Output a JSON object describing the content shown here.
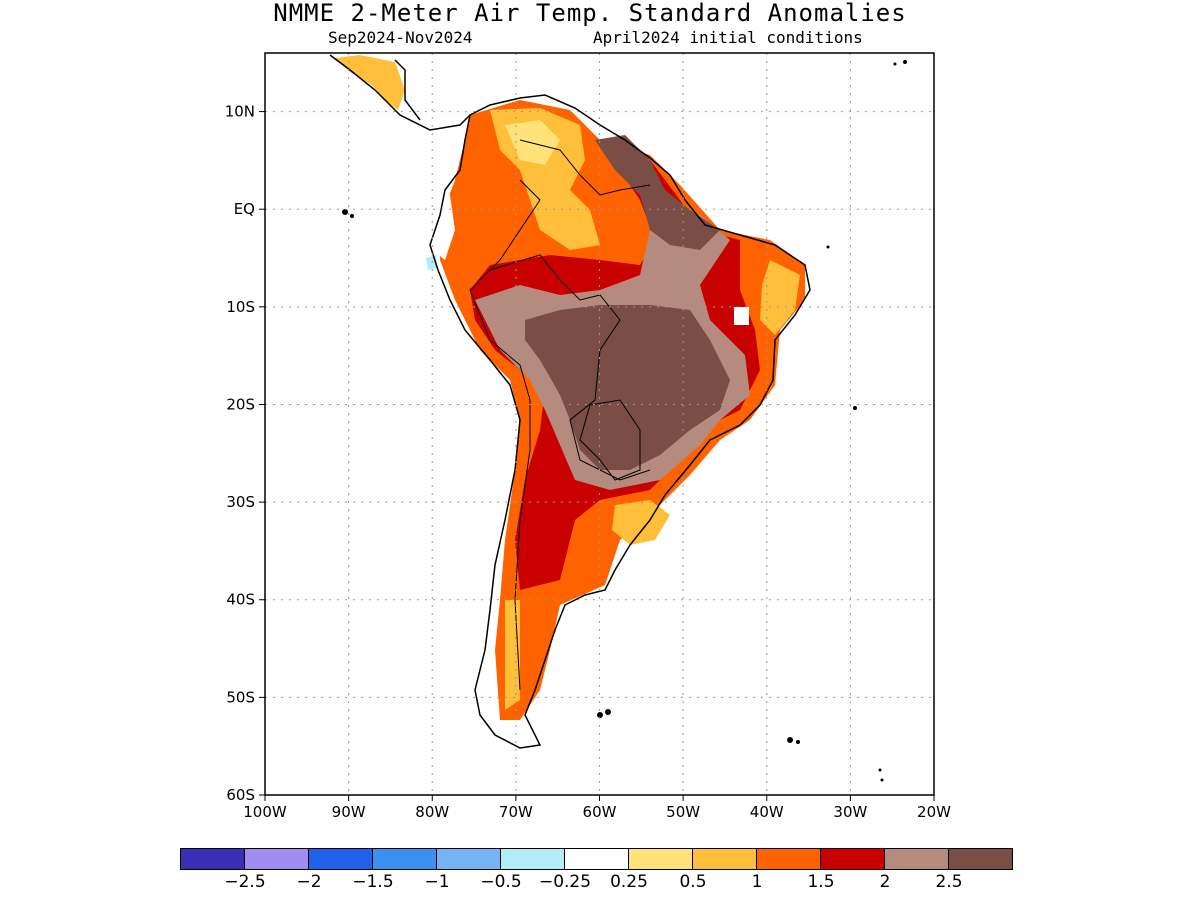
{
  "header": {
    "title": "NMME 2-Meter Air Temp. Standard Anomalies",
    "period": "Sep2024-Nov2024",
    "init": "April2024 initial conditions"
  },
  "map": {
    "lat_labels": [
      "10N",
      "EQ",
      "10S",
      "20S",
      "30S",
      "40S",
      "50S",
      "60S"
    ],
    "lon_labels": [
      "100W",
      "90W",
      "80W",
      "70W",
      "60W",
      "50W",
      "40W",
      "30W",
      "20W"
    ],
    "lat_values": [
      10,
      0,
      -10,
      -20,
      -30,
      -40,
      -50,
      -60
    ],
    "lon_values": [
      -100,
      -90,
      -80,
      -70,
      -60,
      -50,
      -40,
      -30,
      -20
    ],
    "extent": {
      "lon_min": -100,
      "lon_max": -20,
      "lat_min": -60,
      "lat_max": 16
    }
  },
  "colorbar": {
    "colors": [
      "#3a2fb4",
      "#9f8df2",
      "#1f61e8",
      "#3b90f0",
      "#74b4f4",
      "#b2ecf7",
      "#ffffff",
      "#ffe27a",
      "#ffbf3a",
      "#ff6300",
      "#c80000",
      "#b58b80",
      "#7a4e44"
    ],
    "labels": [
      "-2.5",
      "-2",
      "-1.5",
      "-1",
      "-0.5",
      "-0.25",
      "0.25",
      "0.5",
      "1",
      "1.5",
      "2",
      "2.5"
    ]
  },
  "chart_data": {
    "type": "heatmap",
    "title": "NMME 2-Meter Air Temp. Standard Anomalies",
    "subtitle": "Sep2024-Nov2024   April2024 initial conditions",
    "xlim": [
      -100,
      -20
    ],
    "ylim": [
      -60,
      16
    ],
    "legend": "bottom",
    "levels": [
      -2.5,
      -2,
      -1.5,
      -1,
      -0.5,
      -0.25,
      0.25,
      0.5,
      1,
      1.5,
      2,
      2.5
    ],
    "regions": [
      {
        "region": "Central Brazil / Mato Grosso",
        "anomaly_min": 2.5
      },
      {
        "region": "Amazon / southern Venezuela",
        "anomaly_range": [
          1.5,
          2
        ]
      },
      {
        "region": "Northeast Brazil coast",
        "anomaly_range": [
          0.5,
          1.5
        ]
      },
      {
        "region": "Guianas",
        "anomaly_min": 2.5
      },
      {
        "region": "Argentina interior",
        "anomaly_range": [
          2,
          2.5
        ]
      },
      {
        "region": "Patagonia",
        "anomaly_range": [
          0.5,
          1.5
        ]
      },
      {
        "region": "Uruguay / southern Brazil",
        "anomaly_range": [
          0.25,
          1
        ]
      },
      {
        "region": "Ecuador coast",
        "anomaly_range": [
          -1,
          0.25
        ]
      }
    ]
  }
}
